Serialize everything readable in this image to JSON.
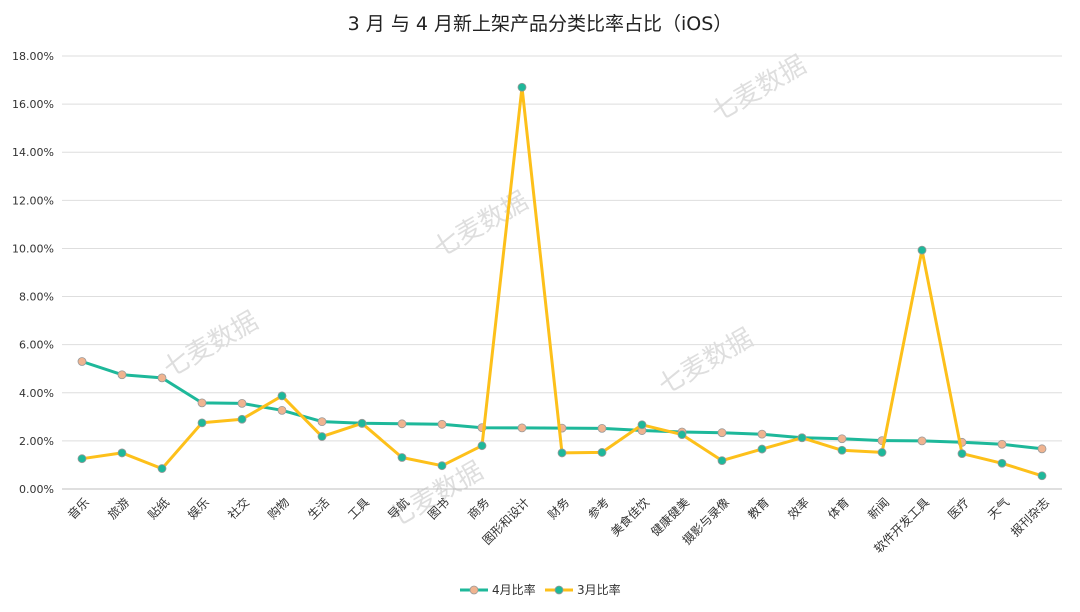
{
  "watermark": "七麦数据",
  "chart_data": {
    "type": "line",
    "title": "3 月 与 4 月新上架产品分类比率占比（iOS）",
    "ylim": [
      0,
      18
    ],
    "yticks": [
      "0.00%",
      "2.00%",
      "4.00%",
      "6.00%",
      "8.00%",
      "10.00%",
      "12.00%",
      "14.00%",
      "16.00%",
      "18.00%"
    ],
    "grid": true,
    "legend_position": "bottom-center",
    "categories": [
      "音乐",
      "旅游",
      "贴纸",
      "娱乐",
      "社交",
      "购物",
      "生活",
      "工具",
      "导航",
      "图书",
      "商务",
      "图形和设计",
      "财务",
      "参考",
      "美食佳饮",
      "健康健美",
      "摄影与录像",
      "教育",
      "效率",
      "体育",
      "新闻",
      "软件开发工具",
      "医疗",
      "天气",
      "报刊杂志"
    ],
    "series": [
      {
        "name": "4月比率",
        "color": "#1eb89a",
        "marker_color": "#f0b490",
        "values": [
          5.3,
          4.75,
          4.62,
          3.58,
          3.56,
          3.27,
          2.8,
          2.73,
          2.71,
          2.69,
          2.55,
          2.54,
          2.53,
          2.52,
          2.43,
          2.37,
          2.34,
          2.28,
          2.13,
          2.09,
          2.01,
          2.0,
          1.94,
          1.86,
          1.67
        ]
      },
      {
        "name": "3月比率",
        "color": "#fdc01a",
        "marker_color": "#1eb89a",
        "values": [
          1.26,
          1.5,
          0.85,
          2.75,
          2.9,
          3.87,
          2.18,
          2.73,
          1.31,
          0.97,
          1.8,
          16.7,
          1.5,
          1.52,
          2.67,
          2.26,
          1.18,
          1.66,
          2.13,
          1.61,
          1.52,
          9.93,
          1.47,
          1.07,
          0.55
        ]
      }
    ]
  }
}
